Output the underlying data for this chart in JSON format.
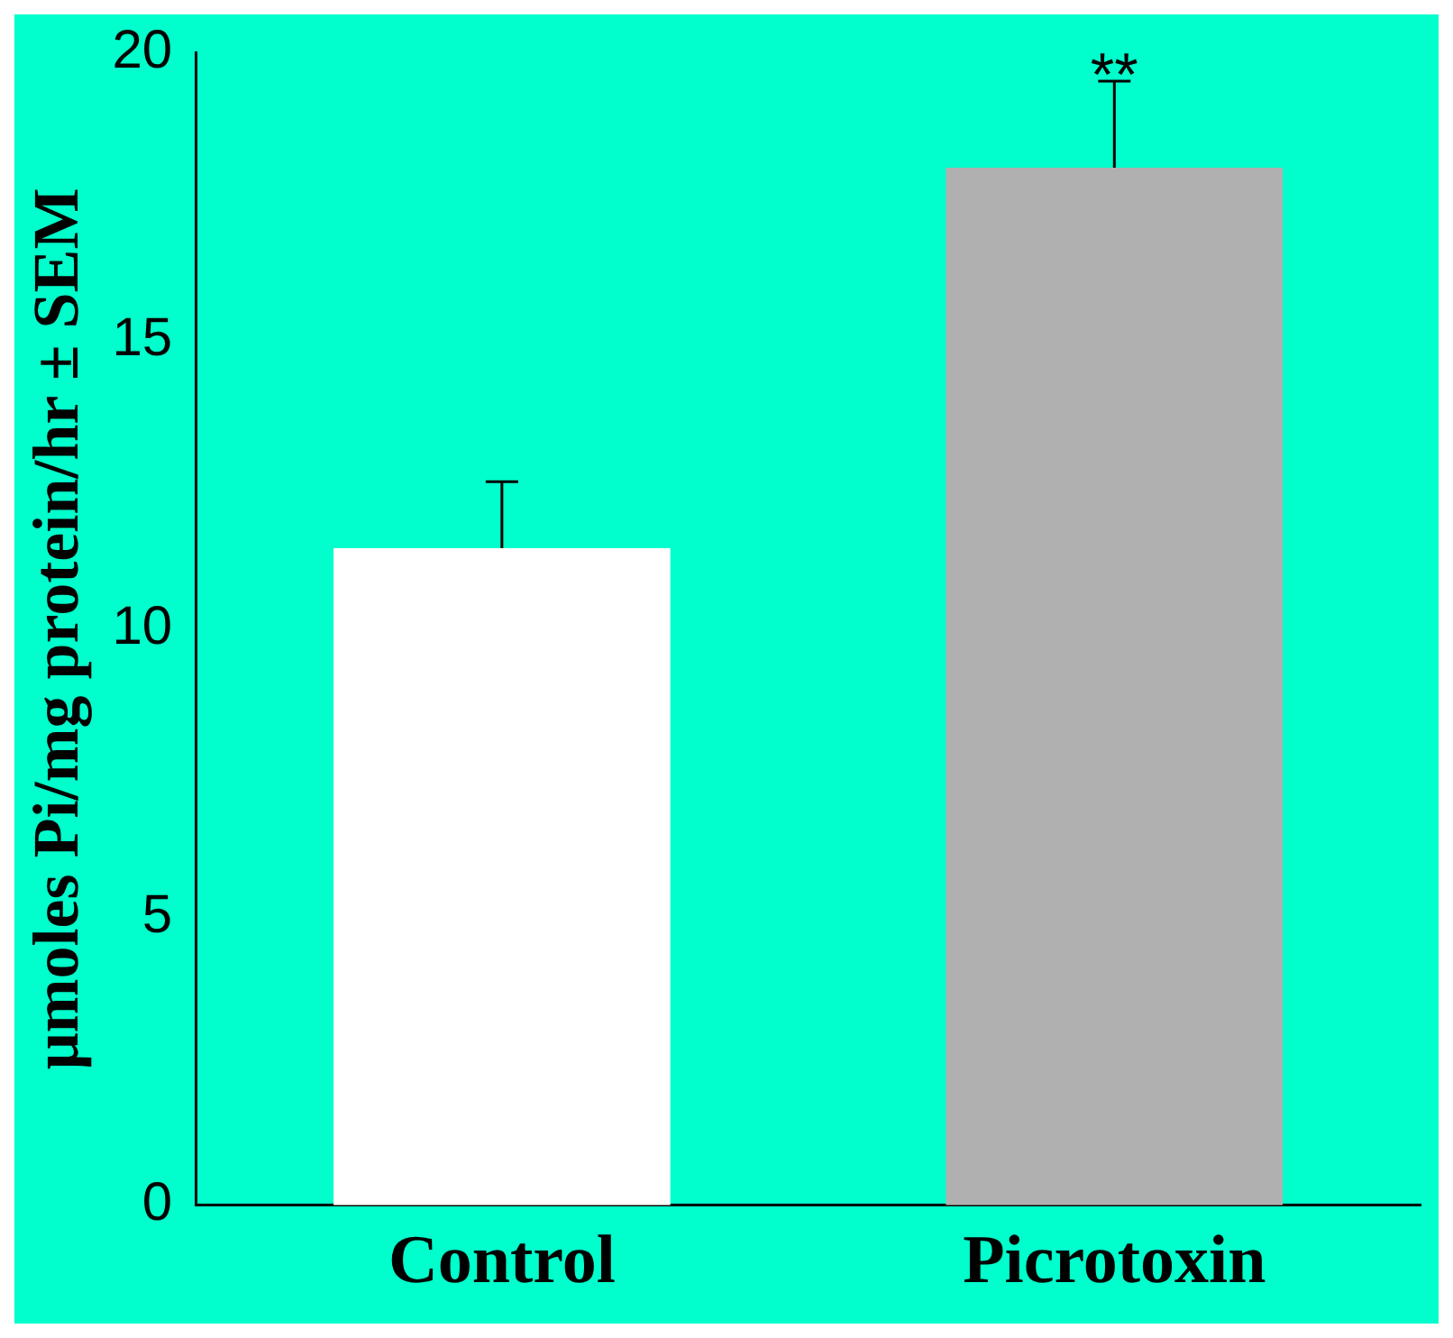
{
  "chart_data": {
    "type": "bar",
    "ylabel": "μmoles Pi/mg protein/hr ± SEM",
    "categories": [
      "Control",
      "Picrotoxin"
    ],
    "values": [
      11.4,
      18.0
    ],
    "colors": [
      "#ffffff",
      "#b0b0b0"
    ],
    "errors": [
      [
        11.4,
        12.55
      ],
      [
        18.0,
        19.5
      ]
    ],
    "annotations": [
      {
        "text": "**",
        "x": "Picrotoxin",
        "y": 19.5
      }
    ],
    "ylim": [
      0,
      20
    ],
    "yticks": [
      0,
      5,
      10,
      15,
      20
    ],
    "grid": false,
    "legend": false
  }
}
